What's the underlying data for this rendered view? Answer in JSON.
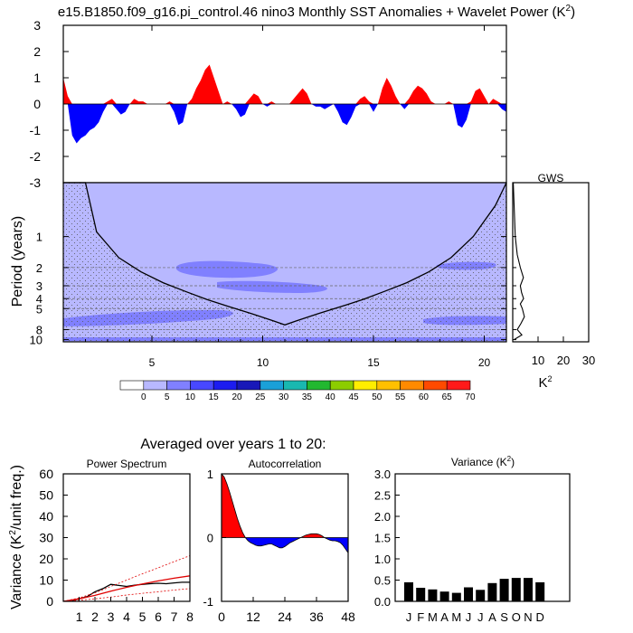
{
  "title": {
    "text": "e15.B1850.f09_g16.pi_control.46 nino3 Monthly SST Anomalies + Wavelet Power (K",
    "sup": "2",
    "close": ")"
  },
  "subtitle": "Averaged over years 1 to 20:",
  "colorbar": {
    "labels": [
      "0",
      "5",
      "10",
      "15",
      "20",
      "25",
      "30",
      "35",
      "40",
      "45",
      "50",
      "55",
      "60",
      "65",
      "70"
    ],
    "colors": [
      "#ffffff",
      "#b8b8ff",
      "#8080ff",
      "#4848ff",
      "#1c1cf0",
      "#1818b8",
      "#1aa0d8",
      "#19b8b0",
      "#22b830",
      "#8ccd00",
      "#ffee00",
      "#ffc000",
      "#ff8a00",
      "#ff4a00",
      "#ff1a1a"
    ]
  },
  "chart_data": [
    {
      "id": "anomaly",
      "type": "area",
      "xlim": [
        1,
        21
      ],
      "ylim": [
        -3,
        3
      ],
      "yticks": [
        "3",
        "2",
        "1",
        "0",
        "-1",
        "-2",
        "-3"
      ],
      "positive_color": "#ff0000",
      "negative_color": "#0000ff",
      "x": [
        1.0,
        1.2,
        1.4,
        1.6,
        1.8,
        2.0,
        2.2,
        2.4,
        2.6,
        2.8,
        3.0,
        3.2,
        3.4,
        3.6,
        3.8,
        4.0,
        4.2,
        4.4,
        4.6,
        4.8,
        5.0,
        5.2,
        5.4,
        5.6,
        5.8,
        6.0,
        6.2,
        6.4,
        6.6,
        6.8,
        7.0,
        7.2,
        7.4,
        7.6,
        7.8,
        8.0,
        8.2,
        8.4,
        8.6,
        8.8,
        9.0,
        9.2,
        9.4,
        9.6,
        9.8,
        10.0,
        10.2,
        10.4,
        10.6,
        10.8,
        11.0,
        11.2,
        11.4,
        11.6,
        11.8,
        12.0,
        12.2,
        12.4,
        12.6,
        12.8,
        13.0,
        13.2,
        13.4,
        13.6,
        13.8,
        14.0,
        14.2,
        14.4,
        14.6,
        14.8,
        15.0,
        15.2,
        15.4,
        15.6,
        15.8,
        16.0,
        16.2,
        16.4,
        16.6,
        16.8,
        17.0,
        17.2,
        17.4,
        17.6,
        17.8,
        18.0,
        18.2,
        18.4,
        18.6,
        18.8,
        19.0,
        19.2,
        19.4,
        19.6,
        19.8,
        20.0,
        20.2,
        20.4,
        20.6,
        20.8,
        21.0
      ],
      "y": [
        1.0,
        0.3,
        -1.2,
        -1.5,
        -1.3,
        -1.2,
        -1.0,
        -0.9,
        -0.7,
        -0.3,
        0.1,
        0.2,
        -0.2,
        -0.4,
        -0.3,
        0.0,
        0.2,
        0.1,
        0.1,
        0.0,
        0.0,
        0.0,
        0.0,
        0.0,
        0.1,
        -0.3,
        -0.8,
        -0.7,
        0.0,
        0.2,
        0.6,
        0.9,
        1.3,
        1.5,
        1.0,
        0.5,
        0.0,
        0.1,
        0.0,
        -0.2,
        -0.5,
        -0.4,
        0.2,
        0.4,
        0.3,
        0.0,
        -0.1,
        0.1,
        0.0,
        0.0,
        0.0,
        0.0,
        0.2,
        0.4,
        0.6,
        0.4,
        0.0,
        -0.1,
        -0.1,
        -0.2,
        -0.1,
        0.0,
        -0.3,
        -0.7,
        -0.8,
        -0.5,
        -0.1,
        0.2,
        0.3,
        0.1,
        -0.3,
        0.0,
        0.6,
        1.0,
        0.7,
        0.3,
        0.0,
        -0.2,
        0.2,
        0.5,
        0.7,
        0.6,
        0.4,
        0.1,
        0.0,
        0.0,
        0.0,
        0.1,
        0.0,
        -0.8,
        -0.9,
        -0.6,
        0.1,
        0.5,
        0.6,
        0.3,
        0.0,
        0.2,
        0.1,
        -0.2,
        -0.3
      ]
    },
    {
      "id": "wavelet",
      "type": "heatmap",
      "xlim": [
        1,
        21
      ],
      "ylabel": "Period (years)",
      "yticks": [
        "1",
        "2",
        "3",
        "4",
        "5",
        "8",
        "10"
      ],
      "xticks": [
        "5",
        "10",
        "15",
        "20"
      ],
      "cone_of_influence": {
        "x": [
          1.0,
          2.0,
          2.5,
          3.5,
          4.5,
          5.5,
          6.5,
          7.5,
          8.5,
          9.5,
          10.5,
          11.0,
          11.5,
          12.5,
          13.5,
          14.5,
          15.5,
          16.5,
          17.5,
          18.5,
          19.5,
          20.5,
          21.0
        ],
        "period": [
          0.3,
          0.3,
          0.9,
          1.6,
          2.2,
          2.8,
          3.4,
          4.1,
          4.8,
          5.6,
          6.6,
          7.2,
          6.6,
          5.6,
          4.8,
          4.1,
          3.4,
          2.8,
          2.2,
          1.6,
          1.0,
          0.5,
          0.3
        ]
      }
    },
    {
      "id": "gws",
      "type": "line",
      "title": "GWS",
      "xlim": [
        0,
        30
      ],
      "xticks": [
        "10",
        "20",
        "30"
      ],
      "xlabel": "K",
      "xlabel_sup": "2",
      "period": [
        0.3,
        1.0,
        1.5,
        2.0,
        2.5,
        3.0,
        3.5,
        4.0,
        4.5,
        5.0,
        6.0,
        7.0,
        8.0,
        9.0,
        10.0
      ],
      "power": [
        0.2,
        1.0,
        1.8,
        3.0,
        4.2,
        3.0,
        3.5,
        4.3,
        3.0,
        3.8,
        4.6,
        3.2,
        1.8,
        3.6,
        0.5
      ]
    },
    {
      "id": "power_spectrum",
      "type": "line",
      "title": "Power Spectrum",
      "ylabel": "Variance (K",
      "ylabel_sup": "2",
      "ylabel_close": "/unit freq.)",
      "xlim": [
        0,
        8
      ],
      "ylim": [
        0,
        60
      ],
      "xticks": [
        "1",
        "2",
        "3",
        "4",
        "5",
        "6",
        "7",
        "8"
      ],
      "yticks": [
        "60",
        "50",
        "40",
        "30",
        "20",
        "10",
        "0"
      ],
      "series": [
        {
          "kind": "black",
          "x": [
            0,
            0.5,
            1,
            1.5,
            2,
            2.5,
            3,
            3.5,
            4,
            4.5,
            5,
            5.5,
            6,
            6.5,
            7,
            7.5,
            8
          ],
          "y": [
            0,
            0.3,
            1.2,
            2.2,
            4.5,
            6,
            8,
            7.5,
            7,
            7.6,
            8,
            8.3,
            8.5,
            8.3,
            8.7,
            9,
            9
          ]
        },
        {
          "kind": "red",
          "x": [
            0,
            1,
            2,
            3,
            4,
            5,
            6,
            7,
            8
          ],
          "y": [
            0,
            1.2,
            2.8,
            4.8,
            6.6,
            8.2,
            9.6,
            10.9,
            12
          ]
        },
        {
          "kind": "red-dashed",
          "x": [
            0,
            1,
            2,
            3,
            4,
            5,
            6,
            7,
            8
          ],
          "y": [
            0,
            1.6,
            4,
            7,
            10,
            13,
            15.8,
            18.7,
            21.5
          ]
        },
        {
          "kind": "red-dashed",
          "x": [
            0,
            1,
            2,
            3,
            4,
            5,
            6,
            7,
            8
          ],
          "y": [
            0,
            0.5,
            1.2,
            2,
            3,
            3.8,
            4.5,
            5.3,
            6
          ]
        }
      ]
    },
    {
      "id": "autocorrelation",
      "type": "area",
      "title": "Autocorrelation",
      "xlim": [
        0,
        48
      ],
      "ylim": [
        -1,
        1
      ],
      "xticks": [
        "0",
        "12",
        "24",
        "36",
        "48"
      ],
      "yticks": [
        "1",
        "0",
        "-1"
      ],
      "x": [
        0,
        1,
        2,
        3,
        4,
        5,
        6,
        7,
        8,
        9,
        10,
        11,
        12,
        13,
        14,
        15,
        16,
        17,
        18,
        19,
        20,
        21,
        22,
        23,
        24,
        25,
        26,
        27,
        28,
        29,
        30,
        31,
        32,
        33,
        34,
        35,
        36,
        37,
        38,
        39,
        40,
        41,
        42,
        43,
        44,
        45,
        46,
        47,
        48
      ],
      "y": [
        1.0,
        0.95,
        0.85,
        0.72,
        0.58,
        0.44,
        0.3,
        0.18,
        0.08,
        0.0,
        -0.05,
        -0.08,
        -0.1,
        -0.12,
        -0.13,
        -0.13,
        -0.12,
        -0.11,
        -0.1,
        -0.1,
        -0.12,
        -0.14,
        -0.16,
        -0.16,
        -0.14,
        -0.11,
        -0.08,
        -0.06,
        -0.04,
        -0.02,
        0.0,
        0.02,
        0.04,
        0.05,
        0.06,
        0.06,
        0.06,
        0.05,
        0.03,
        0.0,
        -0.02,
        -0.04,
        -0.05,
        -0.05,
        -0.06,
        -0.08,
        -0.12,
        -0.18,
        -0.24
      ]
    },
    {
      "id": "monthly_variance",
      "type": "bar",
      "title": "Variance (K",
      "title_sup": "2",
      "title_close": ")",
      "categories": [
        "J",
        "F",
        "M",
        "A",
        "M",
        "J",
        "J",
        "A",
        "S",
        "O",
        "N",
        "D"
      ],
      "values": [
        0.45,
        0.32,
        0.28,
        0.23,
        0.2,
        0.33,
        0.27,
        0.43,
        0.53,
        0.55,
        0.55,
        0.45
      ],
      "ylim": [
        0,
        3.0
      ],
      "yticks": [
        "3.0",
        "2.5",
        "2.0",
        "1.5",
        "1.0",
        "0.5",
        "0.0"
      ]
    }
  ]
}
